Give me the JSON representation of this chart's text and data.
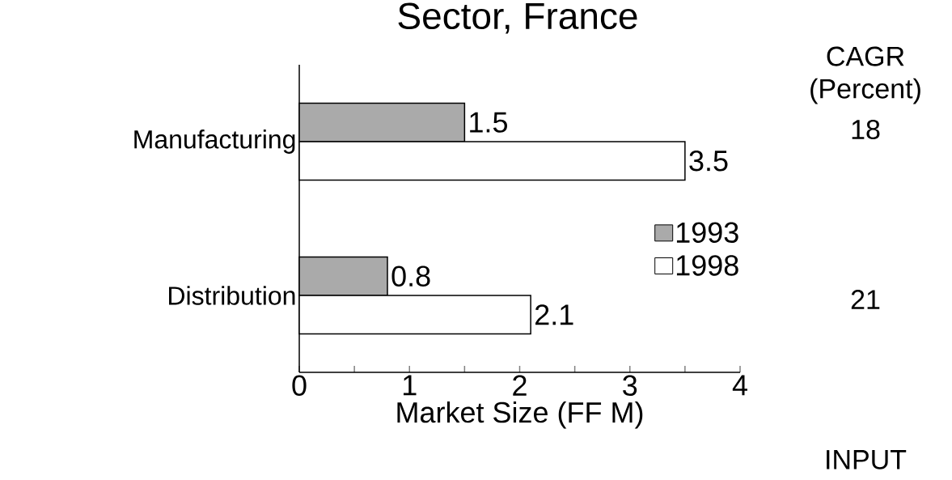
{
  "chart_data": {
    "type": "bar",
    "orientation": "horizontal",
    "title": "Sector, France",
    "xlabel": "Market Size (FF M)",
    "categories": [
      "Manufacturing",
      "Distribution"
    ],
    "series": [
      {
        "name": "1993",
        "color": "#aaaaaa",
        "values": [
          1.5,
          0.8
        ]
      },
      {
        "name": "1998",
        "color": "#ffffff",
        "values": [
          3.5,
          2.1
        ]
      }
    ],
    "xlim": [
      0,
      4
    ],
    "xticks": [
      0,
      {
        "value": 0.5,
        "label": null
      },
      1,
      {
        "value": 1.5,
        "label": null
      },
      2,
      {
        "value": 2.5,
        "label": null
      },
      3,
      {
        "value": 3.5,
        "label": null
      },
      4
    ],
    "data_labels": true,
    "legend": "bottom right",
    "annotations": [
      "CAGR (Percent)",
      "18",
      "21",
      "INPUT"
    ]
  }
}
